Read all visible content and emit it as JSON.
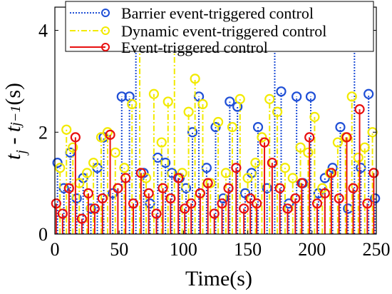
{
  "chart_data": {
    "type": "scatter",
    "subtype": "stem",
    "xlabel": "Time(s)",
    "ylabel_parts": {
      "t": "t",
      "j": "j",
      "minus": " - ",
      "t2": "t",
      "jm1": "j−1",
      "unit": "(s)"
    },
    "xlim": [
      0,
      250
    ],
    "ylim": [
      0,
      4.4
    ],
    "xticks": [
      "0",
      "50",
      "100",
      "150",
      "200",
      "250"
    ],
    "yticks": [
      "0",
      "2",
      "4"
    ],
    "grid": false,
    "legend_position": "top",
    "series": [
      {
        "name": "Barrier event-triggered control",
        "color": "#1f4fd6",
        "line_style": "dotted",
        "marker": "circle",
        "x": [
          2,
          7,
          12,
          17,
          22,
          28,
          33,
          38,
          45,
          52,
          58,
          63,
          69,
          74,
          80,
          86,
          91,
          97,
          102,
          107,
          112,
          118,
          125,
          131,
          136,
          142,
          148,
          153,
          158,
          165,
          171,
          176,
          182,
          188,
          193,
          199,
          205,
          210,
          216,
          222,
          228,
          233,
          238,
          244,
          249
        ],
        "y": [
          1.4,
          0.9,
          1.6,
          0.7,
          1.1,
          0.5,
          1.3,
          1.9,
          0.8,
          2.7,
          2.7,
          3.95,
          1.2,
          0.6,
          1.5,
          1.4,
          1.2,
          1.1,
          0.9,
          2.0,
          2.7,
          1.3,
          2.1,
          0.7,
          2.6,
          2.5,
          0.8,
          1.2,
          2.1,
          0.9,
          3.85,
          2.8,
          0.6,
          2.7,
          1.0,
          2.7,
          0.8,
          1.1,
          1.3,
          2.1,
          0.5,
          4.4,
          1.3,
          2.75,
          0.7
        ]
      },
      {
        "name": "Dynamic event-triggered control",
        "color": "#f2ea00",
        "line_style": "dashdot",
        "marker": "circle",
        "x": [
          4,
          9,
          14,
          19,
          25,
          30,
          36,
          41,
          47,
          54,
          60,
          66,
          71,
          77,
          83,
          88,
          93,
          99,
          104,
          109,
          115,
          121,
          127,
          133,
          138,
          144,
          150,
          156,
          161,
          167,
          173,
          179,
          185,
          191,
          197,
          202,
          208,
          214,
          220,
          226,
          231,
          236,
          241,
          247
        ],
        "y": [
          1.3,
          2.05,
          1.7,
          1.0,
          1.2,
          1.4,
          1.9,
          2.0,
          1.6,
          1.3,
          2.55,
          3.9,
          1.1,
          2.75,
          1.8,
          2.6,
          3.8,
          1.2,
          2.4,
          3.05,
          2.55,
          1.0,
          2.2,
          1.2,
          2.1,
          2.65,
          1.1,
          1.4,
          1.9,
          2.65,
          2.4,
          1.3,
          1.1,
          1.7,
          1.6,
          2.3,
          0.9,
          1.2,
          1.8,
          1.9,
          2.7,
          1.5,
          1.7,
          2.0
        ]
      },
      {
        "name": "Event-triggered control",
        "color": "#e81010",
        "line_style": "solid",
        "marker": "circle",
        "x": [
          1,
          6,
          11,
          16,
          21,
          26,
          31,
          37,
          43,
          49,
          55,
          61,
          67,
          73,
          79,
          84,
          90,
          96,
          101,
          106,
          113,
          119,
          124,
          130,
          135,
          141,
          147,
          152,
          157,
          163,
          169,
          175,
          181,
          187,
          192,
          198,
          204,
          210,
          215,
          221,
          227,
          232,
          237,
          243,
          248
        ],
        "y": [
          0.6,
          0.4,
          0.9,
          1.9,
          0.3,
          0.8,
          0.5,
          0.7,
          1.95,
          0.9,
          1.1,
          0.6,
          1.2,
          0.8,
          0.4,
          0.9,
          0.7,
          1.1,
          0.5,
          0.6,
          0.8,
          1.0,
          0.4,
          0.6,
          0.9,
          1.3,
          0.5,
          0.7,
          0.6,
          1.8,
          1.4,
          0.9,
          0.5,
          0.7,
          1.0,
          1.9,
          0.6,
          0.8,
          1.2,
          0.7,
          1.9,
          0.9,
          2.45,
          0.6,
          1.2
        ]
      }
    ]
  }
}
